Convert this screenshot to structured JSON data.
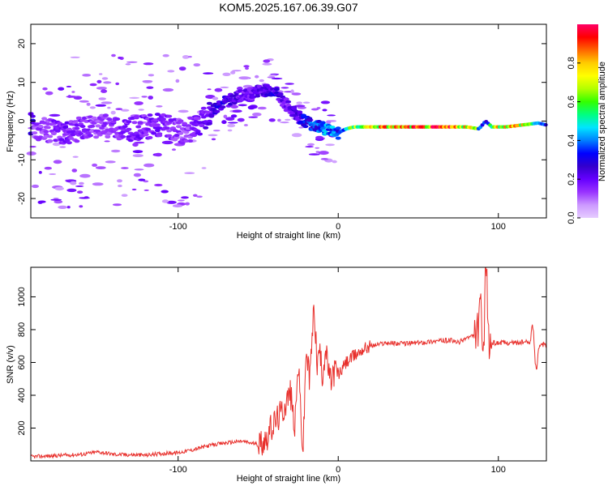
{
  "title": "KOM5.2025.167.06.39.G07",
  "chart_data": [
    {
      "id": "spectrogram",
      "type": "heatmap",
      "xlabel": "Height of straight line (km)",
      "ylabel": "Frequency (Hz)",
      "xlim": [
        -192,
        130
      ],
      "ylim": [
        -25,
        25
      ],
      "xticks": [
        -100,
        0,
        100
      ],
      "yticks": [
        -20,
        -10,
        0,
        10,
        20
      ],
      "colorbar": {
        "label": "Normalized spectral amplitude",
        "range": [
          0,
          1
        ],
        "ticks": [
          0.0,
          0.2,
          0.4,
          0.6,
          0.8
        ],
        "tick_labels": [
          "0.0",
          "0.2",
          "0.4",
          "0.6",
          "0.8"
        ],
        "colormap": [
          "#e6ccff",
          "#cc99ff",
          "#9933ff",
          "#6600ff",
          "#3300cc",
          "#0000ff",
          "#0080ff",
          "#00e5ff",
          "#00ff80",
          "#33ff00",
          "#b3ff00",
          "#ffff00",
          "#ffcc00",
          "#ff6600",
          "#ff0000",
          "#ff0066"
        ]
      },
      "ridge": {
        "x": [
          -190,
          -170,
          -150,
          -130,
          -110,
          -95,
          -85,
          -75,
          -65,
          -55,
          -48,
          -40,
          -32,
          -24,
          -16,
          -8,
          0,
          5,
          10,
          20,
          40,
          60,
          80,
          88,
          92,
          96,
          105,
          115,
          125,
          130
        ],
        "y": [
          -2,
          -3,
          -1,
          -2,
          -1,
          -3,
          0,
          4,
          6,
          7,
          8,
          8,
          4,
          1,
          -1,
          -2,
          -3,
          -2,
          -1.5,
          -1.5,
          -1.5,
          -1.5,
          -1.5,
          -2,
          0,
          -1.5,
          -1.5,
          -1,
          -0.5,
          -1
        ],
        "amplitude": [
          0.15,
          0.2,
          0.15,
          0.2,
          0.2,
          0.15,
          0.2,
          0.3,
          0.25,
          0.2,
          0.25,
          0.3,
          0.2,
          0.3,
          0.4,
          0.5,
          0.4,
          0.5,
          0.7,
          0.85,
          0.9,
          0.92,
          0.9,
          0.6,
          0.3,
          0.8,
          0.9,
          0.85,
          0.5,
          0.3
        ]
      }
    },
    {
      "id": "snr",
      "type": "line",
      "xlabel": "Height of straight line (km)",
      "ylabel": "SNR (v/v)",
      "xlim": [
        -192,
        130
      ],
      "ylim": [
        0,
        1180
      ],
      "xticks": [
        -100,
        0,
        100
      ],
      "yticks": [
        200,
        400,
        600,
        800,
        1000
      ],
      "color": "#e8302c",
      "x": [
        -192,
        -180,
        -160,
        -150,
        -140,
        -120,
        -110,
        -100,
        -90,
        -80,
        -70,
        -60,
        -50,
        -45,
        -40,
        -35,
        -30,
        -27,
        -25,
        -22,
        -20,
        -18,
        -15,
        -13,
        -12,
        -10,
        -8,
        -5,
        -2,
        0,
        5,
        10,
        15,
        20,
        25,
        30,
        40,
        50,
        60,
        70,
        75,
        80,
        85,
        88,
        89,
        90,
        91,
        92,
        93,
        94,
        95,
        100,
        110,
        120,
        121,
        122,
        123,
        124,
        125,
        128,
        130
      ],
      "y": [
        25,
        30,
        40,
        55,
        40,
        35,
        45,
        50,
        70,
        95,
        110,
        120,
        100,
        140,
        230,
        300,
        420,
        200,
        600,
        40,
        700,
        480,
        950,
        550,
        700,
        520,
        680,
        480,
        560,
        520,
        600,
        640,
        680,
        700,
        710,
        720,
        715,
        720,
        730,
        735,
        720,
        750,
        760,
        820,
        1000,
        720,
        600,
        1180,
        1080,
        700,
        720,
        720,
        720,
        725,
        830,
        780,
        600,
        560,
        690,
        710,
        700
      ]
    }
  ]
}
